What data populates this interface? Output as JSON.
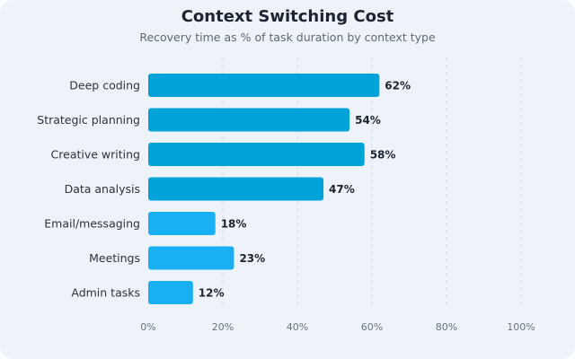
{
  "chart_data": {
    "type": "bar",
    "orientation": "horizontal",
    "title": "Context Switching Cost",
    "subtitle": "Recovery time as % of task duration by context type",
    "categories": [
      "Deep coding",
      "Strategic planning",
      "Creative writing",
      "Data analysis",
      "Email/messaging",
      "Meetings",
      "Admin tasks"
    ],
    "values": [
      62,
      54,
      58,
      47,
      18,
      23,
      12
    ],
    "value_labels": [
      "62%",
      "54%",
      "58%",
      "47%",
      "18%",
      "23%",
      "12%"
    ],
    "xlim": [
      0,
      100
    ],
    "xticks": [
      0,
      20,
      40,
      60,
      80,
      100
    ],
    "xtick_labels": [
      "0%",
      "20%",
      "40%",
      "60%",
      "80%",
      "100%"
    ],
    "grid": "vertical dashed",
    "colors": {
      "high": "#00a3d8",
      "low": "#18b0f2",
      "grid": "#cfd8e3",
      "background": "#eef3f9",
      "label": "#2c323c",
      "tick": "#6b7480"
    }
  }
}
